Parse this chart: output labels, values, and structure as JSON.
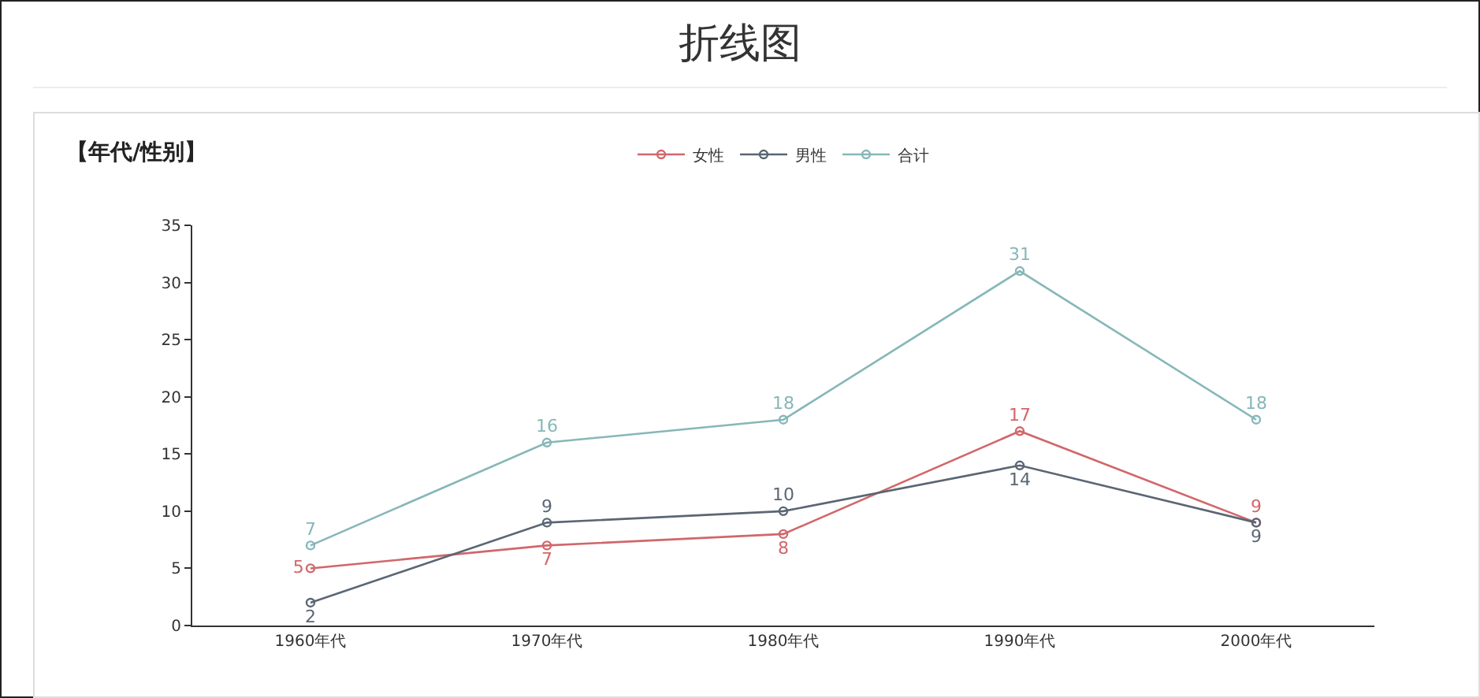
{
  "chart_data": {
    "type": "line",
    "title": "折线图",
    "subtitle": "【年代/性别】",
    "categories": [
      "1960年代",
      "1970年代",
      "1980年代",
      "1990年代",
      "2000年代"
    ],
    "series": [
      {
        "name": "女性",
        "color": "#d0676a",
        "values": [
          5,
          7,
          8,
          17,
          9
        ]
      },
      {
        "name": "男性",
        "color": "#5a6673",
        "values": [
          2,
          9,
          10,
          14,
          9
        ]
      },
      {
        "name": "合计",
        "color": "#87b7b8",
        "values": [
          7,
          16,
          18,
          31,
          18
        ]
      }
    ],
    "ylim": [
      0,
      35
    ],
    "yticks": [
      0,
      5,
      10,
      15,
      20,
      25,
      30,
      35
    ],
    "grid": false,
    "legend": "top",
    "marker": "circle",
    "line_style": "solid",
    "data_labels": true
  }
}
